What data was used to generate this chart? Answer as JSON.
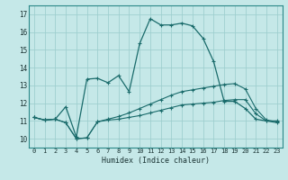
{
  "xlabel": "Humidex (Indice chaleur)",
  "bg_color": "#c5e8e8",
  "line_color": "#1a6b6b",
  "grid_color": "#9fcfcf",
  "xlim": [
    -0.5,
    23.5
  ],
  "ylim": [
    9.5,
    17.5
  ],
  "xticks": [
    0,
    1,
    2,
    3,
    4,
    5,
    6,
    7,
    8,
    9,
    10,
    11,
    12,
    13,
    14,
    15,
    16,
    17,
    18,
    19,
    20,
    21,
    22,
    23
  ],
  "yticks": [
    10,
    11,
    12,
    13,
    14,
    15,
    16,
    17
  ],
  "line_top_x": [
    0,
    1,
    2,
    3,
    4,
    5,
    6,
    7,
    8,
    9,
    10,
    11,
    12,
    13,
    14,
    15,
    16,
    17,
    18,
    19,
    20,
    21,
    22,
    23
  ],
  "line_top_y": [
    11.2,
    11.05,
    11.1,
    11.8,
    10.1,
    13.35,
    13.4,
    13.15,
    13.55,
    12.65,
    15.35,
    16.75,
    16.4,
    16.4,
    16.5,
    16.35,
    15.65,
    14.35,
    12.1,
    12.1,
    11.7,
    11.1,
    11.0,
    11.0
  ],
  "line_mid_x": [
    0,
    1,
    2,
    3,
    4,
    5,
    6,
    7,
    8,
    9,
    10,
    11,
    12,
    13,
    14,
    15,
    16,
    17,
    18,
    19,
    20,
    21,
    22,
    23
  ],
  "line_mid_y": [
    11.2,
    11.05,
    11.1,
    10.9,
    10.0,
    10.05,
    10.95,
    11.1,
    11.25,
    11.45,
    11.7,
    11.95,
    12.2,
    12.45,
    12.65,
    12.75,
    12.85,
    12.95,
    13.05,
    13.1,
    12.8,
    11.7,
    11.05,
    10.95
  ],
  "line_bot_x": [
    0,
    1,
    2,
    3,
    4,
    5,
    6,
    7,
    8,
    9,
    10,
    11,
    12,
    13,
    14,
    15,
    16,
    17,
    18,
    19,
    20,
    21,
    22,
    23
  ],
  "line_bot_y": [
    11.2,
    11.05,
    11.1,
    10.9,
    10.0,
    10.05,
    10.95,
    11.05,
    11.1,
    11.2,
    11.3,
    11.45,
    11.6,
    11.75,
    11.9,
    11.95,
    12.0,
    12.05,
    12.15,
    12.2,
    12.2,
    11.4,
    11.0,
    10.9
  ]
}
